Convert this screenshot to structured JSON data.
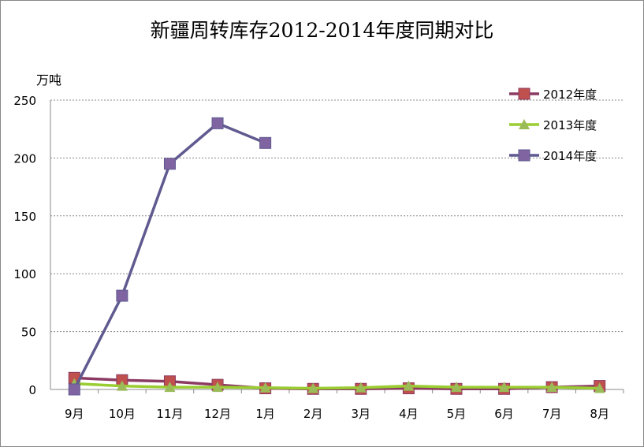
{
  "chart_data": {
    "type": "line",
    "title": "新疆周转库存2012-2014年度同期对比",
    "ylabel": "万吨",
    "xlabel": "",
    "ylim": [
      0,
      250
    ],
    "yticks": [
      "0",
      "50",
      "100",
      "150",
      "200",
      "250"
    ],
    "categories": [
      "9月",
      "10月",
      "11月",
      "12月",
      "1月",
      "2月",
      "3月",
      "4月",
      "5月",
      "6月",
      "7月",
      "8月"
    ],
    "grid": true,
    "legend": "top-right",
    "series": [
      {
        "name": "2012年度",
        "color": "#8B3A62",
        "marker": "square",
        "markerColor": "#C0504D",
        "values": [
          10,
          8,
          7,
          4,
          1,
          0.5,
          0.5,
          1,
          0.5,
          0.5,
          2,
          3
        ]
      },
      {
        "name": "2013年度",
        "color": "#9ACD32",
        "marker": "triangle",
        "markerColor": "#9BBB59",
        "values": [
          5,
          3,
          2,
          2,
          1.5,
          1,
          1.5,
          3,
          2,
          2,
          2,
          1
        ]
      },
      {
        "name": "2014年度",
        "color": "#5F5A8F",
        "marker": "square",
        "markerColor": "#8064A2",
        "values": [
          0,
          81,
          195,
          230,
          213,
          null,
          null,
          null,
          null,
          null,
          null,
          null
        ]
      }
    ]
  }
}
